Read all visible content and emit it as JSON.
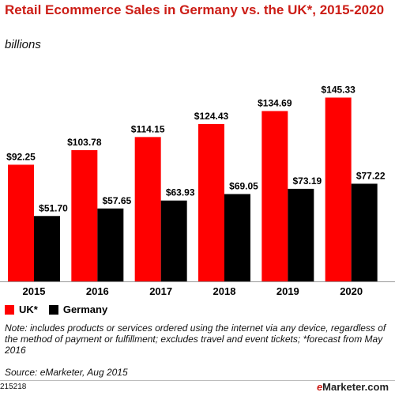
{
  "chart_data": {
    "type": "bar",
    "title": "Retail Ecommerce Sales in Germany vs. the UK*, 2015-2020",
    "subtitle": "billions",
    "categories": [
      "2015",
      "2016",
      "2017",
      "2018",
      "2019",
      "2020"
    ],
    "series": [
      {
        "name": "UK*",
        "color": "#ff0000",
        "values": [
          92.25,
          103.78,
          114.15,
          124.43,
          134.69,
          145.33
        ],
        "labels": [
          "$92.25",
          "$103.78",
          "$114.15",
          "$124.43",
          "$134.69",
          "$145.33"
        ]
      },
      {
        "name": "Germany",
        "color": "#000000",
        "values": [
          51.7,
          57.65,
          63.93,
          69.05,
          73.19,
          77.22
        ],
        "labels": [
          "$51.70",
          "$57.65",
          "$63.93",
          "$69.05",
          "$73.19",
          "$77.22"
        ]
      }
    ],
    "ylim": [
      0,
      160
    ],
    "grid": false,
    "legend_position": "bottom-left",
    "note": "Note: includes products or services ordered using the internet via any device, regardless of the method of payment or fulfillment; excludes travel and event tickets; *forecast from May 2016",
    "source": "Source: eMarketer, Aug 2015",
    "chart_id": "215218",
    "brand": {
      "prefix": "e",
      "name": "Marketer",
      "suffix": ".com"
    }
  }
}
